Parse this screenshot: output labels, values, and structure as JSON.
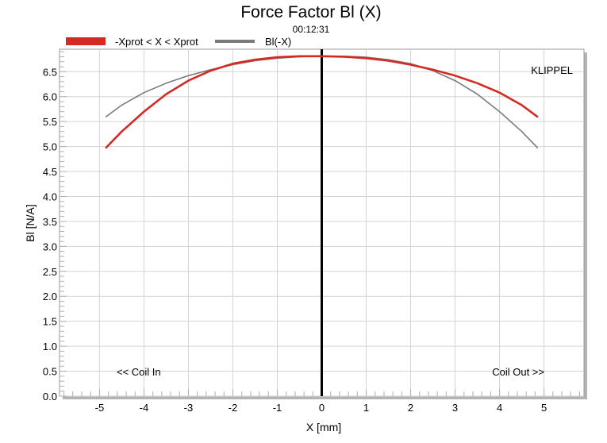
{
  "chart_data": {
    "type": "line",
    "title": "Force Factor Bl (X)",
    "subtitle": "00:12:31",
    "xlabel": "X [mm]",
    "ylabel": "Bl [N/A]",
    "watermark": "KLIPPEL",
    "annotations": {
      "left": "<< Coil In",
      "right": "Coil Out >>"
    },
    "xlim": [
      -5.9,
      5.9
    ],
    "ylim": [
      0.0,
      6.95
    ],
    "xticks": [
      -5,
      -4,
      -3,
      -2,
      -1,
      0,
      1,
      2,
      3,
      4,
      5
    ],
    "yticks": [
      0.0,
      0.5,
      1.0,
      1.5,
      2.0,
      2.5,
      3.0,
      3.5,
      4.0,
      4.5,
      5.0,
      5.5,
      6.0,
      6.5
    ],
    "grid": true,
    "legend_position": "top-left",
    "zero_line_x": 0,
    "series": [
      {
        "name": "-Xprot < X < Xprot",
        "color": "#d42a24",
        "x": [
          -4.85,
          -4.5,
          -4.0,
          -3.5,
          -3.0,
          -2.5,
          -2.0,
          -1.5,
          -1.0,
          -0.5,
          0.0,
          0.5,
          1.0,
          1.5,
          2.0,
          2.5,
          3.0,
          3.5,
          4.0,
          4.5,
          4.85
        ],
        "y": [
          4.98,
          5.3,
          5.7,
          6.05,
          6.32,
          6.52,
          6.66,
          6.74,
          6.79,
          6.81,
          6.81,
          6.8,
          6.77,
          6.72,
          6.64,
          6.54,
          6.42,
          6.27,
          6.08,
          5.83,
          5.6
        ]
      },
      {
        "name": "Bl(-X)",
        "color": "#7a7a7a",
        "x": [
          -4.85,
          -4.5,
          -4.0,
          -3.5,
          -3.0,
          -2.5,
          -2.0,
          -1.5,
          -1.0,
          -0.5,
          0.0,
          0.5,
          1.0,
          1.5,
          2.0,
          2.5,
          3.0,
          3.5,
          4.0,
          4.5,
          4.85
        ],
        "y": [
          5.6,
          5.83,
          6.08,
          6.27,
          6.42,
          6.54,
          6.64,
          6.72,
          6.77,
          6.8,
          6.81,
          6.81,
          6.79,
          6.74,
          6.66,
          6.52,
          6.32,
          6.05,
          5.7,
          5.3,
          4.98
        ]
      }
    ]
  }
}
